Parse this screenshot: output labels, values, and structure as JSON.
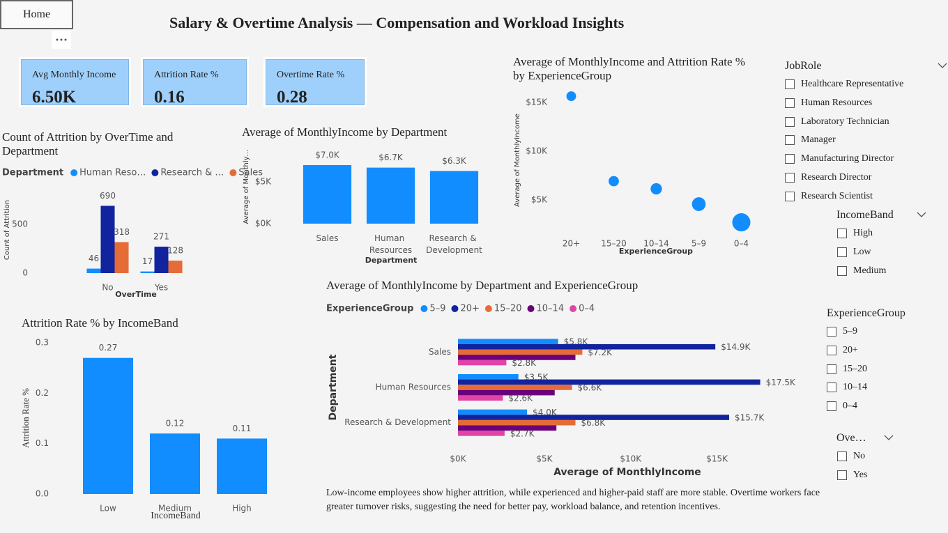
{
  "header": {
    "home": "Home",
    "title": "Salary & Overtime Analysis — Compensation and Workload Insights"
  },
  "kpis": [
    {
      "label": "Avg Monthly Income",
      "value": "6.50K"
    },
    {
      "label": "Attrition Rate %",
      "value": "0.16"
    },
    {
      "label": "Overtime Rate %",
      "value": "0.28"
    }
  ],
  "chart_data": [
    {
      "type": "bar",
      "title": "Count of Attrition by OverTime and Department",
      "y_label": "Count of Attrition",
      "x_label": "OverTime",
      "legend_title": "Department",
      "categories": [
        "No",
        "Yes"
      ],
      "series": [
        {
          "name": "Human Reso…",
          "color": "#118dff",
          "values": [
            46,
            17
          ]
        },
        {
          "name": "Research & …",
          "color": "#12239e",
          "values": [
            690,
            271
          ]
        },
        {
          "name": "Sales",
          "color": "#e66c37",
          "values": [
            318,
            128
          ]
        }
      ],
      "ylim": [
        0,
        800
      ],
      "yticks": [
        0,
        500
      ],
      "grid": false
    },
    {
      "type": "bar",
      "title": "Average of MonthlyIncome by Department",
      "y_label": "Average of Monthly…",
      "x_label": "Department",
      "categories": [
        "Sales",
        "Human Resources",
        "Research & Development"
      ],
      "color": "#118dff",
      "values": [
        7000,
        6700,
        6300
      ],
      "value_labels": [
        "$7.0K",
        "$6.7K",
        "$6.3K"
      ],
      "ylim": [
        0,
        7500
      ],
      "yticks": [
        {
          "value": 0,
          "label": "$0K"
        },
        {
          "value": 5000,
          "label": "$5K"
        }
      ],
      "grid": false
    },
    {
      "type": "bubble",
      "title": "Average of MonthlyIncome and Attrition Rate % by ExperienceGroup",
      "y_label": "Average of MonthlyIncome",
      "x_label": "ExperienceGroup",
      "categories": [
        "20+",
        "15–20",
        "10–14",
        "5–9",
        "0–4"
      ],
      "color": "#118dff",
      "values": [
        15640,
        6930,
        6140,
        4570,
        2710
      ],
      "sizes": [
        0.08,
        0.09,
        0.11,
        0.16,
        0.28
      ],
      "ylim": [
        2000,
        16500
      ],
      "yticks": [
        {
          "value": 5000,
          "label": "$5K"
        },
        {
          "value": 10000,
          "label": "$10K"
        },
        {
          "value": 15000,
          "label": "$15K"
        }
      ],
      "grid": false
    },
    {
      "type": "bar",
      "title": "Attrition Rate % by IncomeBand",
      "y_label": "Attrition Rate %",
      "x_label": "IncomeBand",
      "categories": [
        "Low",
        "Medium",
        "High"
      ],
      "color": "#118dff",
      "values": [
        0.27,
        0.12,
        0.11
      ],
      "ylim": [
        0,
        0.3
      ],
      "yticks": [
        {
          "value": 0,
          "label": "0.0"
        },
        0.1,
        0.2,
        0.3
      ],
      "grid": false
    },
    {
      "type": "hbar",
      "title": "Average of MonthlyIncome by Department and ExperienceGroup",
      "y_label": "Department",
      "x_label": "Average of MonthlyIncome",
      "legend_title": "ExperienceGroup",
      "categories": [
        "Sales",
        "Human Resources",
        "Research & Development"
      ],
      "series": [
        {
          "name": "5–9",
          "color": "#118dff",
          "values": [
            5800,
            3500,
            4000
          ],
          "value_labels": [
            "$5.8K",
            "$3.5K",
            "$4.0K"
          ]
        },
        {
          "name": "20+",
          "color": "#12239e",
          "values": [
            14900,
            17500,
            15700
          ],
          "value_labels": [
            "$14.9K",
            "$17.5K",
            "$15.7K"
          ]
        },
        {
          "name": "15–20",
          "color": "#e66c37",
          "values": [
            7200,
            6600,
            6800
          ],
          "value_labels": [
            "$7.2K",
            "$6.6K",
            "$6.8K"
          ]
        },
        {
          "name": "10–14",
          "color": "#6b007b",
          "values": [
            6800,
            5600,
            5700
          ]
        },
        {
          "name": "0–4",
          "color": "#e044a7",
          "values": [
            2800,
            2600,
            2700
          ],
          "value_labels": [
            "$2.8K",
            "$2.6K",
            "$2.7K"
          ]
        }
      ],
      "xlim": [
        0,
        18000
      ],
      "xticks": [
        {
          "value": 0,
          "label": "$0K"
        },
        {
          "value": 5000,
          "label": "$5K"
        },
        {
          "value": 10000,
          "label": "$10K"
        },
        {
          "value": 15000,
          "label": "$15K"
        }
      ],
      "grid": false
    }
  ],
  "slicers": [
    {
      "title": "JobRole",
      "items": [
        "Healthcare Representative",
        "Human Resources",
        "Laboratory Technician",
        "Manager",
        "Manufacturing Director",
        "Research Director",
        "Research Scientist"
      ]
    },
    {
      "title": "IncomeBand",
      "items": [
        "High",
        "Low",
        "Medium"
      ]
    },
    {
      "title": "ExperienceGroup",
      "items": [
        "5–9",
        "20+",
        "15–20",
        "10–14",
        "0–4"
      ]
    },
    {
      "title": "Ove…",
      "items": [
        "No",
        "Yes"
      ]
    }
  ],
  "note": "Low-income employees show higher attrition, while experienced and higher-paid staff are more stable. Overtime workers face greater turnover risks, suggesting the need for better pay, workload balance, and retention incentives."
}
